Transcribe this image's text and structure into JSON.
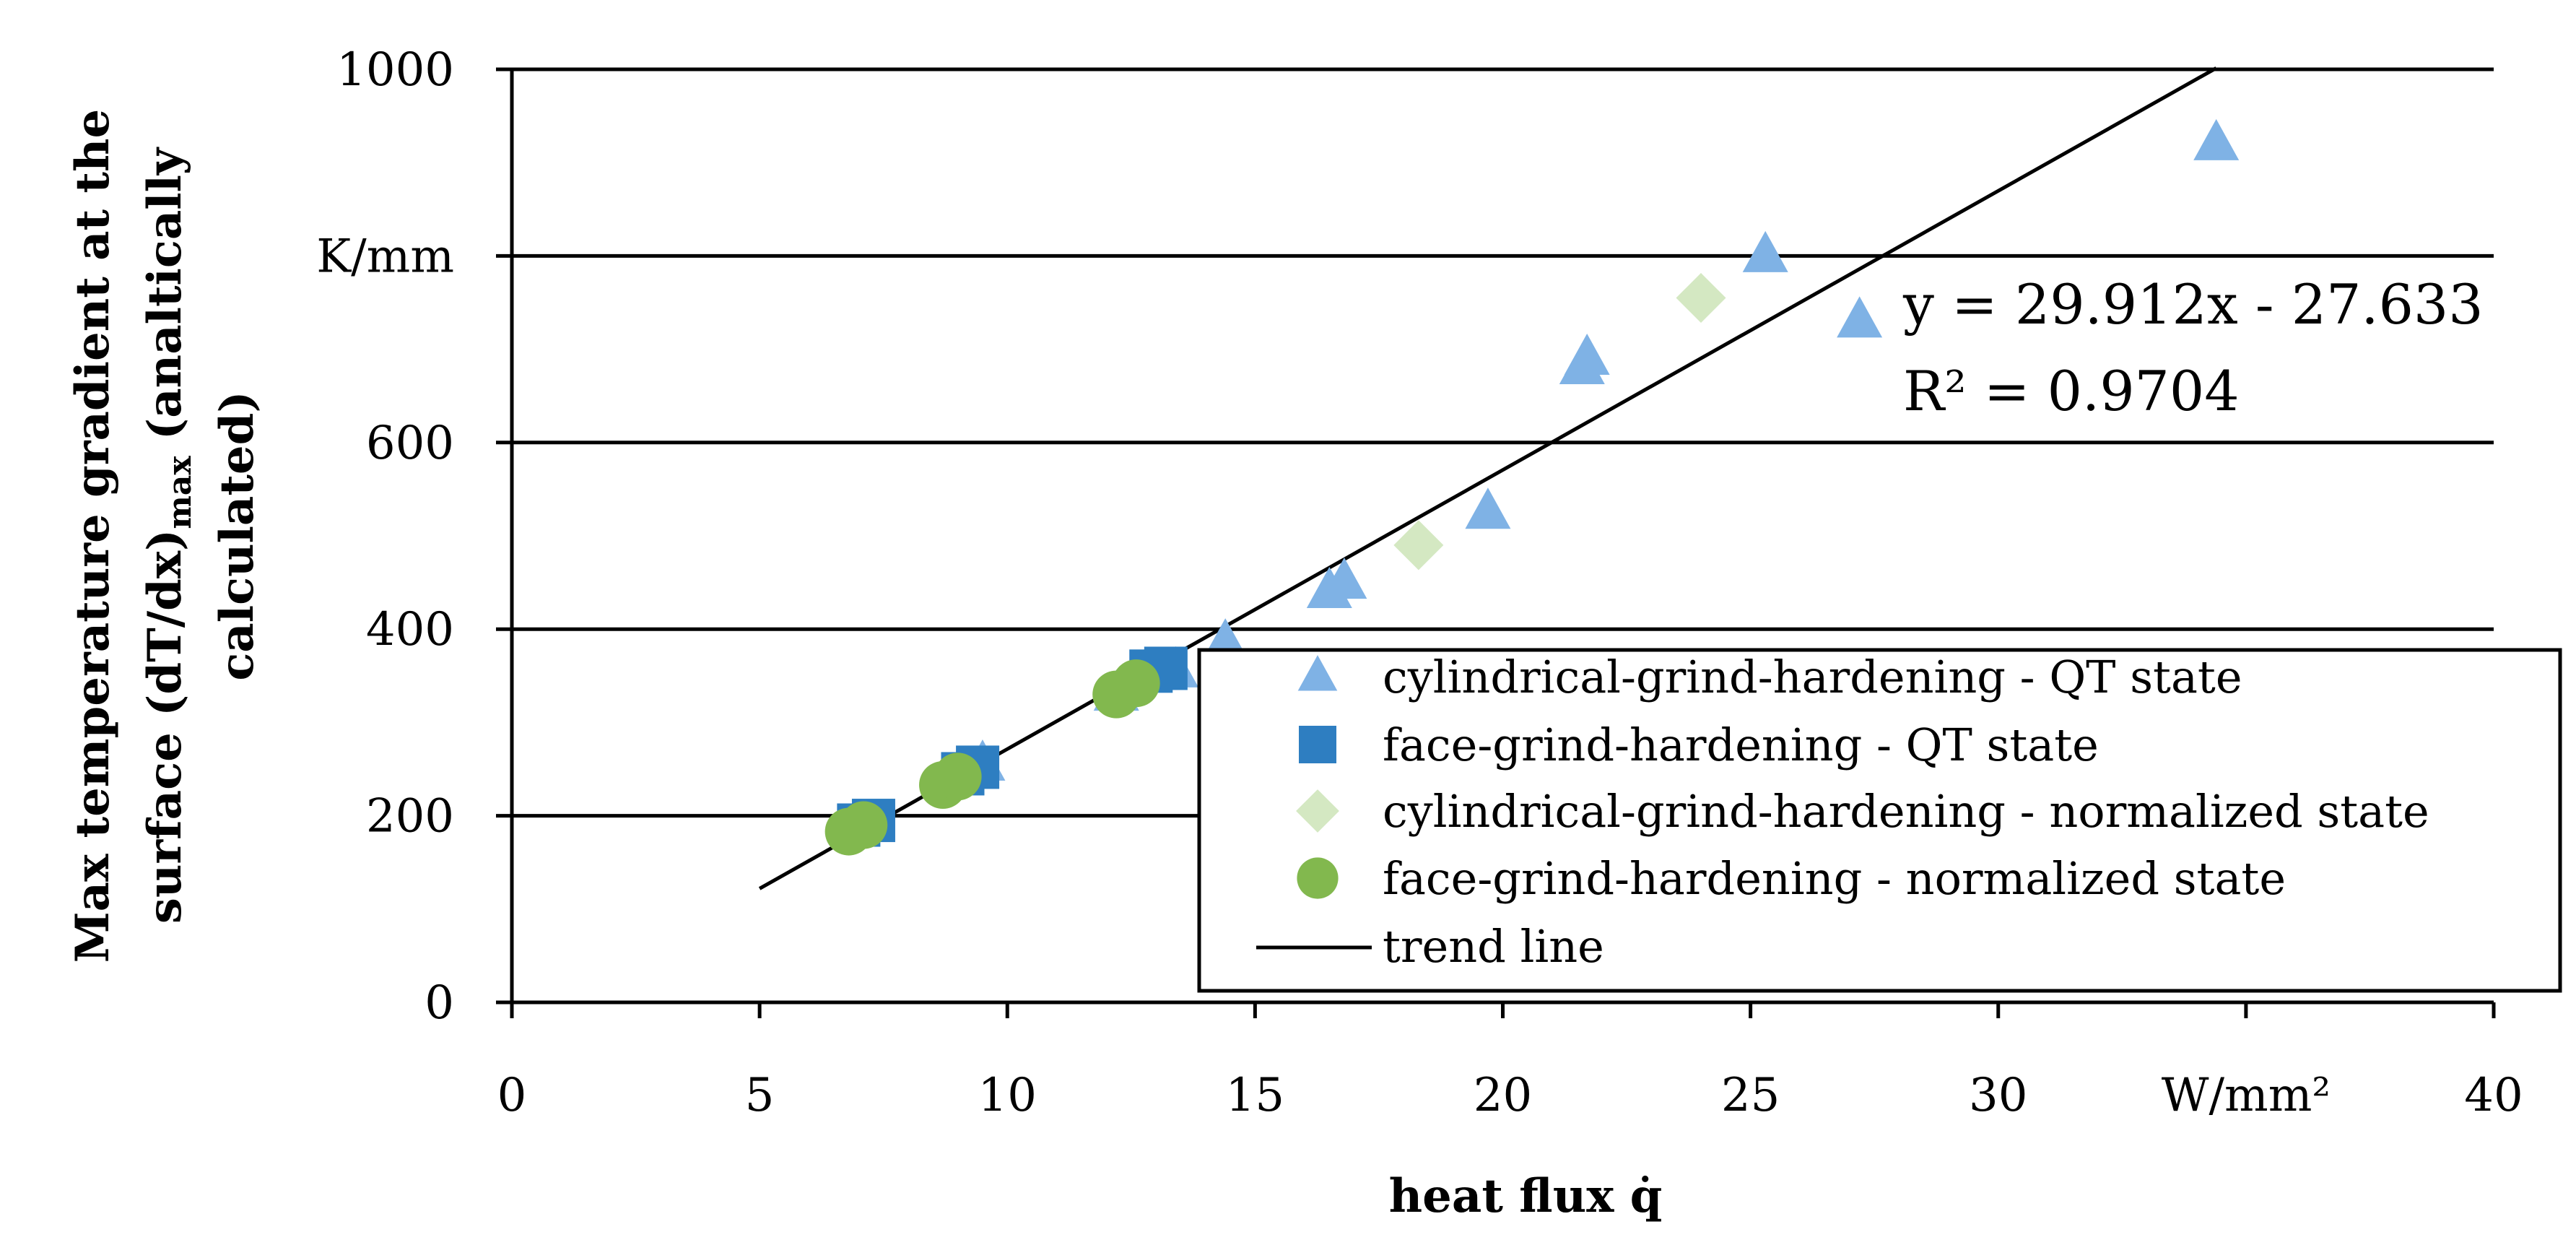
{
  "chart_data": {
    "type": "scatter",
    "title": "",
    "xlabel": "heat flux q̇",
    "ylabel_lines": [
      "Max temperature gradient at the",
      "surface (dT/dx)",
      "max",
      " (analtically",
      "calculated)"
    ],
    "xlim": [
      0,
      40
    ],
    "ylim": [
      0,
      1000
    ],
    "x_ticks": [
      0,
      5,
      10,
      15,
      20,
      25,
      30,
      35,
      40
    ],
    "x_tick_labels": [
      "0",
      "5",
      "10",
      "15",
      "20",
      "25",
      "30",
      "W/mm²",
      "40"
    ],
    "y_ticks": [
      0,
      200,
      400,
      600,
      800,
      1000
    ],
    "y_tick_labels": [
      "0",
      "200",
      "400",
      "600",
      "K/mm",
      "1000"
    ],
    "gridlines": "horizontal",
    "legend_position": "bottom-right",
    "series": [
      {
        "name": "cylindrical-grind-hardening - QT state",
        "marker": "triangle",
        "color": "#7FB2E5",
        "points": [
          [
            12.2,
            330
          ],
          [
            13.4,
            355
          ],
          [
            9.5,
            255
          ],
          [
            14.4,
            385
          ],
          [
            16.5,
            440
          ],
          [
            16.8,
            450
          ],
          [
            19.7,
            525
          ],
          [
            21.6,
            680
          ],
          [
            21.7,
            690
          ],
          [
            25.3,
            800
          ],
          [
            27.2,
            730
          ],
          [
            34.4,
            920
          ]
        ]
      },
      {
        "name": "face-grind-hardening - QT state",
        "marker": "square",
        "color": "#2E7EC1",
        "points": [
          [
            7.0,
            190
          ],
          [
            7.3,
            195
          ],
          [
            9.1,
            245
          ],
          [
            9.4,
            252
          ],
          [
            12.9,
            355
          ],
          [
            13.2,
            358
          ]
        ]
      },
      {
        "name": "cylindrical-grind-hardening - normalized state",
        "marker": "diamond",
        "color": "#D4E8C2",
        "points": [
          [
            18.3,
            490
          ],
          [
            24.0,
            755
          ]
        ]
      },
      {
        "name": "face-grind-hardening - normalized state",
        "marker": "circle",
        "color": "#82B84E",
        "points": [
          [
            6.8,
            183
          ],
          [
            7.1,
            190
          ],
          [
            8.7,
            233
          ],
          [
            9.0,
            242
          ],
          [
            12.2,
            330
          ],
          [
            12.6,
            342
          ]
        ]
      }
    ],
    "trend_line": {
      "name": "trend line",
      "slope": 29.912,
      "intercept": -27.633,
      "x_range": [
        5,
        34.4
      ],
      "color": "#000000",
      "equation": "y = 29.912x - 27.633",
      "r_squared": "R² = 0.9704"
    }
  }
}
